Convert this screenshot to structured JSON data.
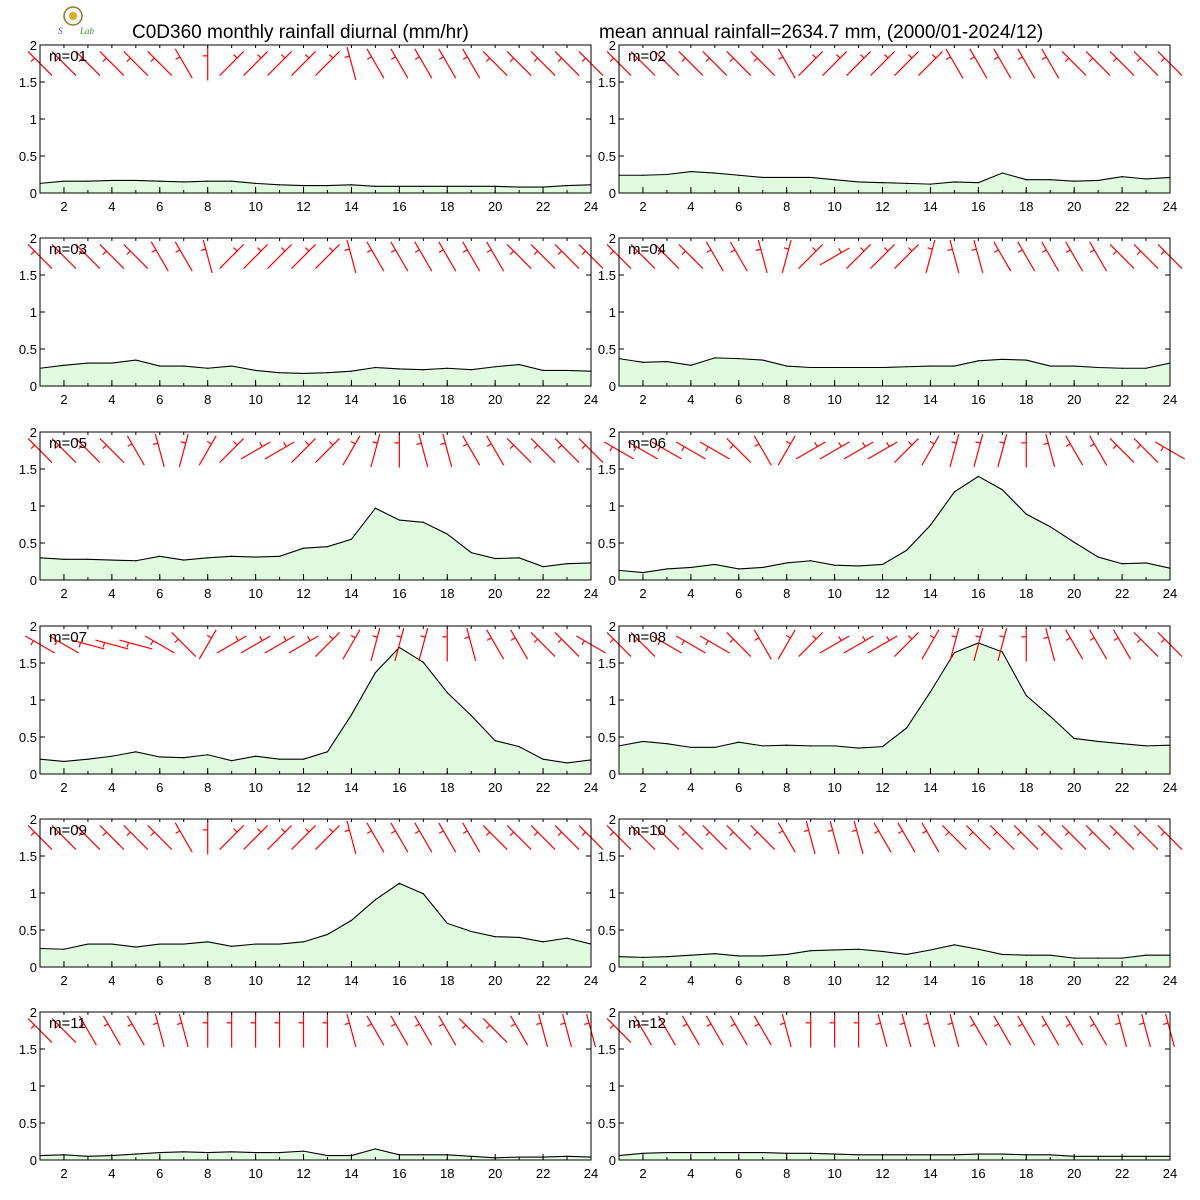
{
  "title_left": "C0D360 monthly rainfall diurnal (mm/hr)",
  "title_right": "mean annual rainfall=2634.7 mm, (2000/01-2024/12)",
  "logo": {
    "text": "Lab"
  },
  "chart_data": {
    "type": "area",
    "x": [
      1,
      2,
      3,
      4,
      5,
      6,
      7,
      8,
      9,
      10,
      11,
      12,
      13,
      14,
      15,
      16,
      17,
      18,
      19,
      20,
      21,
      22,
      23,
      24
    ],
    "xticks": [
      "2",
      "4",
      "6",
      "8",
      "10",
      "12",
      "14",
      "16",
      "18",
      "20",
      "22",
      "24"
    ],
    "yticks": [
      "0",
      "0.5",
      "1",
      "1.5",
      "2"
    ],
    "ylim": [
      0,
      2
    ],
    "xlim": [
      1,
      24
    ],
    "fill_color": "#e0fbe0",
    "line_color": "#000000",
    "wind_barb_color": "#ff0000",
    "panels": [
      {
        "label": "m=01",
        "values": [
          0.13,
          0.16,
          0.16,
          0.17,
          0.17,
          0.16,
          0.15,
          0.16,
          0.16,
          0.13,
          0.11,
          0.1,
          0.1,
          0.11,
          0.09,
          0.09,
          0.09,
          0.09,
          0.09,
          0.09,
          0.08,
          0.08,
          0.1,
          0.11
        ],
        "wind_dir": [
          135,
          135,
          135,
          135,
          135,
          135,
          150,
          180,
          225,
          225,
          225,
          225,
          225,
          165,
          150,
          150,
          150,
          150,
          150,
          135,
          135,
          135,
          135,
          135
        ]
      },
      {
        "label": "m=02",
        "values": [
          0.24,
          0.24,
          0.25,
          0.29,
          0.27,
          0.24,
          0.21,
          0.21,
          0.21,
          0.18,
          0.15,
          0.14,
          0.13,
          0.12,
          0.15,
          0.14,
          0.27,
          0.18,
          0.18,
          0.16,
          0.17,
          0.22,
          0.19,
          0.21
        ],
        "wind_dir": [
          135,
          135,
          135,
          135,
          135,
          135,
          135,
          150,
          225,
          225,
          225,
          225,
          225,
          225,
          150,
          150,
          150,
          150,
          150,
          135,
          135,
          135,
          135,
          135
        ]
      },
      {
        "label": "m=03",
        "values": [
          0.24,
          0.28,
          0.31,
          0.31,
          0.35,
          0.27,
          0.27,
          0.24,
          0.27,
          0.21,
          0.18,
          0.17,
          0.18,
          0.2,
          0.25,
          0.23,
          0.22,
          0.24,
          0.22,
          0.26,
          0.29,
          0.21,
          0.21,
          0.2
        ],
        "wind_dir": [
          135,
          135,
          135,
          135,
          135,
          150,
          150,
          165,
          225,
          225,
          225,
          225,
          225,
          165,
          150,
          150,
          150,
          150,
          150,
          150,
          135,
          135,
          135,
          135
        ]
      },
      {
        "label": "m=04",
        "values": [
          0.37,
          0.32,
          0.33,
          0.28,
          0.38,
          0.37,
          0.35,
          0.27,
          0.25,
          0.25,
          0.25,
          0.25,
          0.26,
          0.27,
          0.27,
          0.34,
          0.36,
          0.35,
          0.27,
          0.27,
          0.25,
          0.24,
          0.24,
          0.31
        ],
        "wind_dir": [
          135,
          135,
          135,
          135,
          150,
          150,
          165,
          195,
          225,
          240,
          225,
          225,
          225,
          195,
          165,
          165,
          150,
          150,
          150,
          150,
          150,
          135,
          135,
          135
        ]
      },
      {
        "label": "m=05",
        "values": [
          0.3,
          0.28,
          0.28,
          0.27,
          0.26,
          0.32,
          0.27,
          0.3,
          0.32,
          0.31,
          0.32,
          0.43,
          0.45,
          0.55,
          0.97,
          0.81,
          0.78,
          0.62,
          0.37,
          0.29,
          0.3,
          0.18,
          0.22,
          0.23
        ],
        "wind_dir": [
          135,
          135,
          135,
          135,
          150,
          165,
          195,
          210,
          225,
          240,
          240,
          225,
          225,
          210,
          195,
          180,
          165,
          165,
          150,
          150,
          135,
          135,
          135,
          135
        ]
      },
      {
        "label": "m=06",
        "values": [
          0.13,
          0.1,
          0.15,
          0.17,
          0.21,
          0.15,
          0.17,
          0.23,
          0.26,
          0.2,
          0.19,
          0.21,
          0.4,
          0.74,
          1.19,
          1.4,
          1.22,
          0.89,
          0.72,
          0.51,
          0.31,
          0.22,
          0.23,
          0.16
        ],
        "wind_dir": [
          120,
          120,
          120,
          120,
          120,
          135,
          150,
          210,
          240,
          240,
          240,
          240,
          225,
          210,
          195,
          195,
          195,
          180,
          165,
          150,
          150,
          135,
          135,
          120
        ]
      },
      {
        "label": "m=07",
        "values": [
          0.2,
          0.17,
          0.2,
          0.24,
          0.3,
          0.23,
          0.22,
          0.26,
          0.18,
          0.24,
          0.2,
          0.2,
          0.3,
          0.8,
          1.37,
          1.71,
          1.51,
          1.1,
          0.79,
          0.45,
          0.37,
          0.2,
          0.15,
          0.19
        ],
        "wind_dir": [
          120,
          120,
          105,
          105,
          105,
          120,
          135,
          210,
          240,
          240,
          240,
          240,
          225,
          210,
          195,
          195,
          195,
          180,
          165,
          150,
          150,
          135,
          135,
          120
        ]
      },
      {
        "label": "m=08",
        "values": [
          0.38,
          0.44,
          0.41,
          0.36,
          0.36,
          0.43,
          0.38,
          0.39,
          0.38,
          0.38,
          0.35,
          0.37,
          0.62,
          1.11,
          1.64,
          1.77,
          1.65,
          1.06,
          0.78,
          0.48,
          0.44,
          0.41,
          0.38,
          0.39
        ],
        "wind_dir": [
          135,
          135,
          120,
          120,
          120,
          135,
          150,
          210,
          225,
          240,
          240,
          240,
          225,
          210,
          195,
          195,
          195,
          180,
          165,
          150,
          150,
          150,
          135,
          135
        ]
      },
      {
        "label": "m=09",
        "values": [
          0.25,
          0.24,
          0.31,
          0.31,
          0.27,
          0.31,
          0.31,
          0.34,
          0.28,
          0.31,
          0.31,
          0.34,
          0.44,
          0.63,
          0.91,
          1.13,
          0.99,
          0.59,
          0.48,
          0.41,
          0.4,
          0.34,
          0.39,
          0.31
        ],
        "wind_dir": [
          135,
          135,
          135,
          135,
          135,
          135,
          150,
          180,
          225,
          225,
          225,
          225,
          225,
          165,
          150,
          150,
          150,
          150,
          150,
          135,
          135,
          135,
          135,
          135
        ]
      },
      {
        "label": "m=10",
        "values": [
          0.14,
          0.13,
          0.14,
          0.16,
          0.18,
          0.15,
          0.15,
          0.17,
          0.22,
          0.23,
          0.24,
          0.21,
          0.17,
          0.23,
          0.3,
          0.24,
          0.17,
          0.16,
          0.16,
          0.12,
          0.12,
          0.12,
          0.16,
          0.16
        ],
        "wind_dir": [
          135,
          135,
          135,
          135,
          135,
          135,
          135,
          150,
          165,
          165,
          165,
          150,
          150,
          150,
          135,
          135,
          135,
          135,
          135,
          135,
          135,
          135,
          135,
          135
        ]
      },
      {
        "label": "m=11",
        "values": [
          0.06,
          0.07,
          0.05,
          0.06,
          0.08,
          0.1,
          0.11,
          0.1,
          0.11,
          0.1,
          0.1,
          0.12,
          0.06,
          0.06,
          0.15,
          0.07,
          0.07,
          0.07,
          0.05,
          0.03,
          0.04,
          0.04,
          0.05,
          0.04
        ],
        "wind_dir": [
          135,
          135,
          150,
          150,
          150,
          165,
          165,
          180,
          180,
          180,
          180,
          180,
          180,
          165,
          150,
          150,
          150,
          150,
          135,
          135,
          150,
          165,
          165,
          165
        ]
      },
      {
        "label": "m=12",
        "values": [
          0.06,
          0.09,
          0.1,
          0.1,
          0.1,
          0.1,
          0.1,
          0.09,
          0.09,
          0.08,
          0.07,
          0.07,
          0.07,
          0.07,
          0.07,
          0.08,
          0.08,
          0.07,
          0.07,
          0.05,
          0.05,
          0.05,
          0.05,
          0.05
        ],
        "wind_dir": [
          135,
          150,
          150,
          150,
          150,
          150,
          150,
          165,
          180,
          180,
          180,
          165,
          165,
          165,
          165,
          150,
          150,
          150,
          150,
          150,
          150,
          165,
          165,
          165
        ]
      }
    ]
  }
}
